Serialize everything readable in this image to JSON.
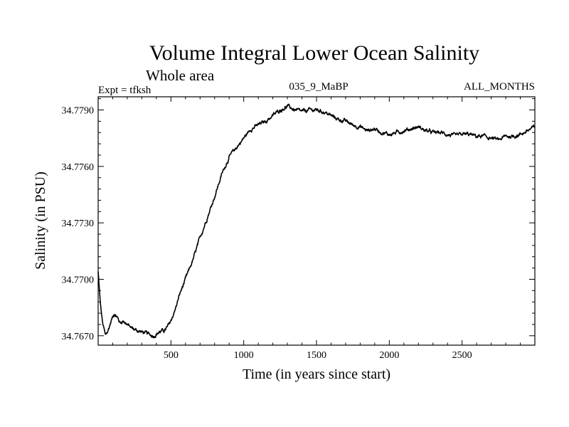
{
  "chart_data": {
    "type": "line",
    "title": "Volume Integral Lower Ocean Salinity",
    "subtitle": "Whole area",
    "experiment": "Expt = tfksh",
    "run_id": "035_9_MaBP",
    "months": "ALL_MONTHS",
    "xlabel": "Time (in years since start)",
    "ylabel": "Salinity (in PSU)",
    "xlim": [
      0,
      3000
    ],
    "ylim": [
      34.7665,
      34.7797
    ],
    "x_ticks": [
      500,
      1000,
      1500,
      2000,
      2500
    ],
    "x_tick_labels": [
      "500",
      "1000",
      "1500",
      "2000",
      "2500"
    ],
    "y_ticks": [
      34.767,
      34.77,
      34.773,
      34.776,
      34.779
    ],
    "y_tick_labels": [
      "34.7670",
      "34.7700",
      "34.7730",
      "34.7760",
      "34.7790"
    ],
    "grid": false,
    "series": [
      {
        "name": "Salinity",
        "color": "#000000",
        "x": [
          0,
          15,
          30,
          50,
          70,
          90,
          110,
          130,
          150,
          175,
          200,
          230,
          260,
          300,
          340,
          380,
          420,
          460,
          480,
          500,
          530,
          560,
          600,
          650,
          700,
          750,
          800,
          850,
          900,
          950,
          1000,
          1050,
          1100,
          1150,
          1200,
          1250,
          1300,
          1350,
          1400,
          1450,
          1500,
          1550,
          1600,
          1650,
          1700,
          1750,
          1800,
          1850,
          1900,
          1950,
          2000,
          2050,
          2100,
          2150,
          2200,
          2250,
          2300,
          2350,
          2400,
          2450,
          2500,
          2550,
          2600,
          2650,
          2700,
          2750,
          2800,
          2850,
          2900,
          2950,
          3000
        ],
        "values": [
          34.7704,
          34.7687,
          34.7677,
          34.767,
          34.7673,
          34.7678,
          34.7682,
          34.768,
          34.7677,
          34.7678,
          34.7676,
          34.7674,
          34.7673,
          34.7672,
          34.7671,
          34.767,
          34.7672,
          34.7673,
          34.7675,
          34.7678,
          34.7684,
          34.7692,
          34.77,
          34.771,
          34.7722,
          34.7733,
          34.7744,
          34.7756,
          34.7765,
          34.777,
          34.7775,
          34.778,
          34.7782,
          34.7784,
          34.7787,
          34.779,
          34.7792,
          34.779,
          34.7789,
          34.779,
          34.779,
          34.7789,
          34.7787,
          34.7785,
          34.7784,
          34.7782,
          34.7781,
          34.7779,
          34.778,
          34.7778,
          34.7777,
          34.7778,
          34.7779,
          34.778,
          34.7781,
          34.7779,
          34.7778,
          34.7778,
          34.7777,
          34.7776,
          34.7777,
          34.7777,
          34.7776,
          34.7776,
          34.7775,
          34.7774,
          34.7776,
          34.7776,
          34.7777,
          34.7779,
          34.7781
        ]
      }
    ]
  }
}
